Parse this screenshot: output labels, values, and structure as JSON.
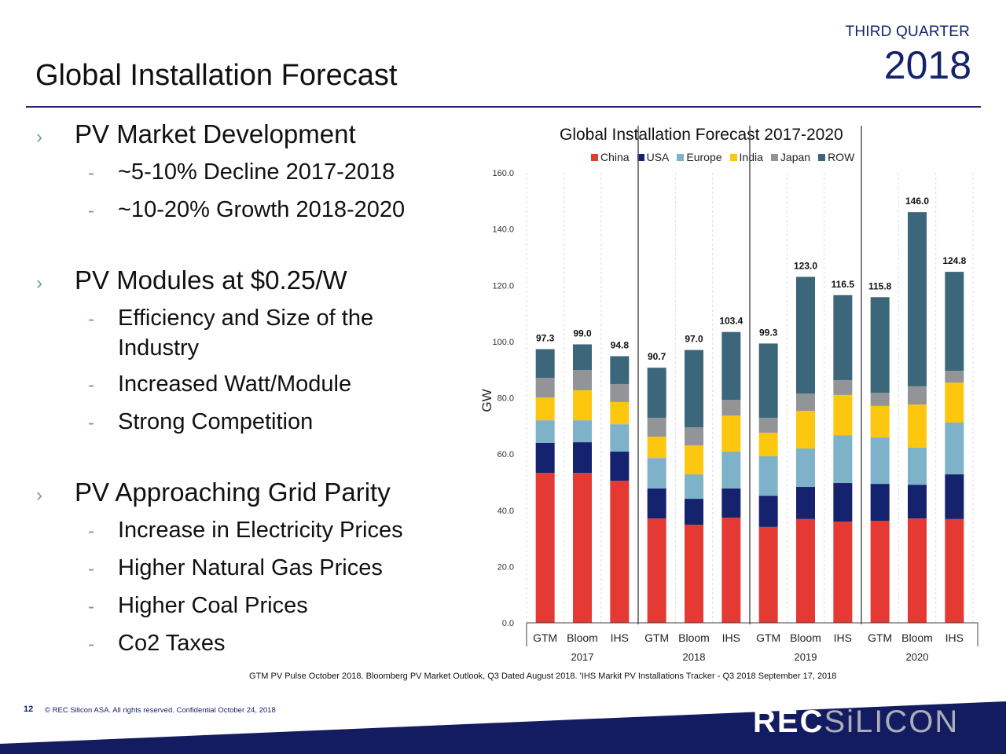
{
  "header": {
    "quarter": "THIRD QUARTER",
    "year": "2018",
    "title": "Global Installation Forecast"
  },
  "bullets": [
    {
      "text": "PV Market Development",
      "sub": [
        "~5-10% Decline 2017-2018",
        "~10-20% Growth 2018-2020"
      ]
    },
    {
      "text": "PV Modules at $0.25/W",
      "sub": [
        "Efficiency and Size of the Industry",
        "Increased Watt/Module",
        "Strong Competition"
      ]
    },
    {
      "text": "PV Approaching Grid Parity",
      "sub": [
        "Increase in Electricity Prices",
        "Higher Natural Gas Prices",
        "Higher Coal Prices",
        "Co2 Taxes"
      ]
    }
  ],
  "icons": {
    "bullet": "chevron-right-icon",
    "sub_bullet": "dash-icon"
  },
  "chart_data": {
    "type": "bar",
    "stacked": true,
    "title": "Global Installation Forecast 2017-2020",
    "xlabel": "",
    "ylabel": "GW",
    "ylim": [
      0,
      160
    ],
    "yticks": [
      "0.0",
      "20.0",
      "40.0",
      "60.0",
      "80.0",
      "100.0",
      "120.0",
      "140.0",
      "160.0"
    ],
    "grid": false,
    "legend_position": "top",
    "groups": [
      "2017",
      "2018",
      "2019",
      "2020"
    ],
    "categories": [
      "GTM",
      "Bloom",
      "IHS",
      "GTM",
      "Bloom",
      "IHS",
      "GTM",
      "Bloom",
      "IHS",
      "GTM",
      "Bloom",
      "IHS"
    ],
    "group_of_category": [
      "2017",
      "2017",
      "2017",
      "2018",
      "2018",
      "2018",
      "2019",
      "2019",
      "2019",
      "2020",
      "2020",
      "2020"
    ],
    "totals": [
      97.3,
      99.0,
      94.8,
      90.7,
      97.0,
      103.4,
      99.3,
      123.0,
      116.5,
      115.8,
      146.0,
      124.8
    ],
    "total_labels": [
      "97.3",
      "99.0",
      "94.8",
      "90.7",
      "97.0",
      "103.4",
      "99.3",
      "123.0",
      "116.5",
      "115.8",
      "146.0",
      "124.8"
    ],
    "series": [
      {
        "name": "China",
        "color": "#e53a33",
        "values": [
          53.3,
          53.3,
          50.5,
          37.1,
          34.9,
          37.4,
          34.1,
          36.9,
          36.0,
          36.3,
          37.1,
          36.9
        ]
      },
      {
        "name": "USA",
        "color": "#15226e",
        "values": [
          10.7,
          10.9,
          10.4,
          10.7,
          9.2,
          10.4,
          11.1,
          11.4,
          13.7,
          13.1,
          12.0,
          15.9
        ]
      },
      {
        "name": "Europe",
        "color": "#7db2c9",
        "values": [
          8.0,
          7.8,
          9.7,
          10.8,
          8.7,
          13.1,
          14.0,
          13.7,
          17.0,
          16.5,
          13.2,
          18.4
        ]
      },
      {
        "name": "India",
        "color": "#fdc70f",
        "values": [
          8.1,
          10.7,
          7.9,
          7.6,
          10.3,
          12.8,
          8.4,
          13.4,
          14.3,
          11.2,
          15.3,
          14.2
        ]
      },
      {
        "name": "Japan",
        "color": "#929497",
        "values": [
          7.0,
          7.2,
          6.4,
          6.7,
          6.4,
          5.6,
          5.3,
          6.1,
          5.3,
          4.7,
          6.5,
          4.2
        ]
      },
      {
        "name": "ROW",
        "color": "#3c6679",
        "values": [
          10.2,
          9.1,
          9.9,
          17.8,
          27.5,
          24.1,
          26.4,
          41.5,
          30.2,
          34.0,
          61.9,
          35.2
        ]
      }
    ]
  },
  "source": "GTM PV Pulse October 2018. Bloomberg PV Market Outlook, Q3 Dated August 2018. 'IHS Markit PV Installations Tracker - Q3 2018 September 17, 2018",
  "footer": {
    "page_number": "12",
    "copyright": "© REC Silicon ASA. All rights reserved. Confidential  October 24, 2018",
    "logo_part1": "REC",
    "logo_part2": "SiLICON"
  },
  "colors": {
    "brand_navy": "#14236b",
    "accent_blue": "#6f9bb0"
  }
}
